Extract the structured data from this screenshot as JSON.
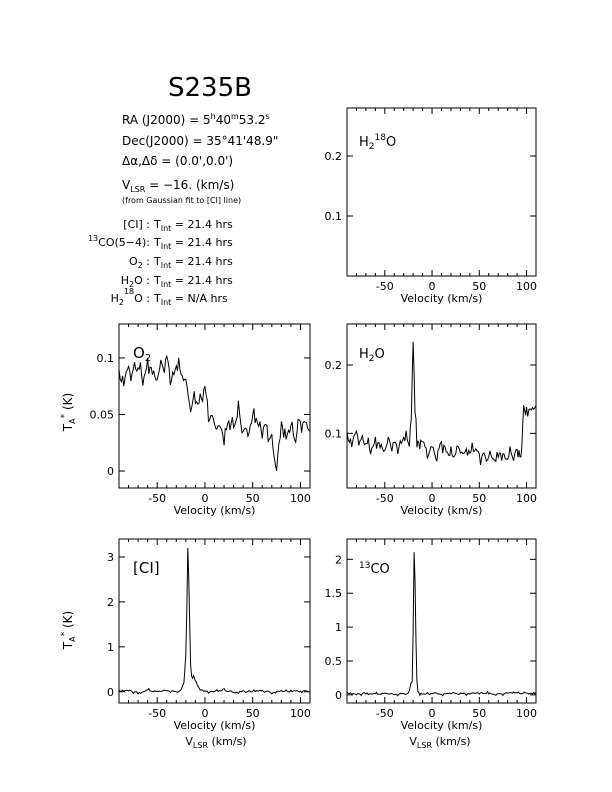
{
  "source": {
    "name": "S235B",
    "ra": "RA (J2000) = 5h40m53.2s",
    "dec": "Dec(J2000) = 35°41'48.9\"",
    "offset": "Δα,Δδ = (0.0',0.0')",
    "vlsr": "VLSR = −16. (km/s)",
    "vlsr_note": "(from Gaussian fit to [CI] line)",
    "integrations": [
      {
        "line": "[CI] :",
        "tint": "TInt = 21.4 hrs"
      },
      {
        "line": "13CO(5−4):",
        "tint": "TInt = 21.4 hrs"
      },
      {
        "line": "O2 :",
        "tint": "TInt = 21.4 hrs"
      },
      {
        "line": "H2O :",
        "tint": "TInt = 21.4 hrs"
      },
      {
        "line": "H2 18O :",
        "tint": "TInt = N/A hrs"
      }
    ]
  },
  "labels": {
    "velocity": "Velocity (km/s)",
    "vlsr_axis": "VLSR (km/s)",
    "ta": "TA* (K)"
  },
  "chart_data": [
    {
      "id": "h2o18",
      "type": "line",
      "species": "H2 18O",
      "xlim": [
        -90,
        110
      ],
      "ylim": [
        0,
        0.28
      ],
      "xticks": [
        -50,
        0,
        50,
        100
      ],
      "yticks": [
        0.1,
        0.2
      ],
      "ytick_labels": [
        "0.1",
        "0.2"
      ],
      "xlabel": "Velocity (km/s)",
      "ylabel": "",
      "series": []
    },
    {
      "id": "o2",
      "type": "line",
      "species": "O2",
      "xlim": [
        -90,
        110
      ],
      "ylim": [
        -0.015,
        0.13
      ],
      "xticks": [
        -50,
        0,
        50,
        100
      ],
      "yticks": [
        0,
        0.05,
        0.1
      ],
      "ytick_labels": [
        "0",
        "0.05",
        "0.1"
      ],
      "xlabel": "Velocity (km/s)",
      "ylabel": "TA* (K)",
      "series": [
        {
          "x": [
            -90,
            -85,
            -80,
            -75,
            -70,
            -65,
            -60,
            -55,
            -50,
            -45,
            -40,
            -35,
            -30,
            -25,
            -20,
            -15,
            -10,
            -5,
            0,
            5,
            10,
            15,
            20,
            25,
            30,
            35,
            40,
            45,
            50,
            55,
            60,
            65,
            70,
            75,
            80,
            85,
            90,
            95,
            100,
            105,
            110
          ],
          "y": [
            0.08,
            0.075,
            0.09,
            0.085,
            0.095,
            0.08,
            0.1,
            0.09,
            0.085,
            0.095,
            0.1,
            0.08,
            0.09,
            0.085,
            0.075,
            0.055,
            0.06,
            0.06,
            0.075,
            0.05,
            0.045,
            0.04,
            0.035,
            0.045,
            0.04,
            0.05,
            0.035,
            0.03,
            0.045,
            0.04,
            0.035,
            0.04,
            0.025,
            0.005,
            0.045,
            0.035,
            0.04,
            0.03,
            0.045,
            0.04,
            0.035
          ]
        }
      ]
    },
    {
      "id": "h2o",
      "type": "line",
      "species": "H2O",
      "xlim": [
        -90,
        110
      ],
      "ylim": [
        0.02,
        0.26
      ],
      "xticks": [
        -50,
        0,
        50,
        100
      ],
      "yticks": [
        0.1,
        0.2
      ],
      "ytick_labels": [
        "0.1",
        "0.2"
      ],
      "xlabel": "Velocity (km/s)",
      "ylabel": "",
      "series": [
        {
          "x": [
            -90,
            -85,
            -80,
            -75,
            -70,
            -65,
            -60,
            -55,
            -50,
            -45,
            -40,
            -35,
            -30,
            -25,
            -22,
            -20,
            -18,
            -16,
            -13,
            -10,
            -5,
            0,
            5,
            10,
            15,
            20,
            25,
            30,
            35,
            40,
            45,
            50,
            55,
            60,
            65,
            70,
            75,
            80,
            85,
            90,
            93,
            95,
            97,
            100,
            105,
            110
          ],
          "y": [
            0.09,
            0.08,
            0.1,
            0.085,
            0.09,
            0.075,
            0.095,
            0.085,
            0.08,
            0.09,
            0.085,
            0.08,
            0.09,
            0.085,
            0.12,
            0.25,
            0.13,
            0.09,
            0.085,
            0.09,
            0.075,
            0.08,
            0.07,
            0.09,
            0.075,
            0.065,
            0.07,
            0.075,
            0.065,
            0.07,
            0.075,
            0.07,
            0.065,
            0.07,
            0.065,
            0.075,
            0.07,
            0.065,
            0.07,
            0.07,
            0.06,
            0.08,
            0.13,
            0.14,
            0.13,
            0.14
          ]
        }
      ]
    },
    {
      "id": "ci",
      "type": "line",
      "species": "[CI]",
      "xlim": [
        -90,
        110
      ],
      "ylim": [
        -0.25,
        3.4
      ],
      "xticks": [
        -50,
        0,
        50,
        100
      ],
      "yticks": [
        0,
        1,
        2,
        3
      ],
      "ytick_labels": [
        "0",
        "1",
        "2",
        "3"
      ],
      "xlabel": "Velocity (km/s)",
      "ylabel": "TA* (K)",
      "series": [
        {
          "x": [
            -90,
            -80,
            -70,
            -60,
            -50,
            -40,
            -30,
            -25,
            -22,
            -20,
            -19,
            -18,
            -17,
            -16,
            -15,
            -14,
            -13,
            -12,
            -11,
            -10,
            -8,
            -6,
            -4,
            0,
            10,
            20,
            30,
            40,
            50,
            60,
            70,
            80,
            90,
            100,
            110
          ],
          "y": [
            0.0,
            0.02,
            -0.02,
            0.03,
            0.0,
            0.02,
            0.0,
            0.05,
            0.2,
            0.8,
            1.8,
            3.2,
            2.6,
            1.5,
            0.6,
            0.35,
            0.3,
            0.35,
            0.3,
            0.25,
            0.15,
            0.08,
            0.05,
            0.02,
            0.0,
            0.03,
            -0.02,
            0.02,
            0.0,
            0.02,
            -0.02,
            0.03,
            0.0,
            0.02,
            0.0
          ]
        }
      ]
    },
    {
      "id": "co13",
      "type": "line",
      "species": "13CO",
      "xlim": [
        -90,
        110
      ],
      "ylim": [
        -0.12,
        2.3
      ],
      "xticks": [
        -50,
        0,
        50,
        100
      ],
      "yticks": [
        0,
        0.5,
        1,
        1.5,
        2
      ],
      "ytick_labels": [
        "0",
        "0.5",
        "1",
        "1.5",
        "2"
      ],
      "xlabel": "Velocity (km/s)",
      "ylabel": "",
      "series": [
        {
          "x": [
            -90,
            -80,
            -70,
            -60,
            -50,
            -40,
            -30,
            -25,
            -21,
            -20,
            -19,
            -18,
            -17,
            -16,
            -15,
            -13,
            -10,
            0,
            10,
            20,
            30,
            40,
            50,
            60,
            70,
            80,
            90,
            100,
            110
          ],
          "y": [
            0.02,
            0.0,
            0.03,
            0.01,
            0.02,
            0.0,
            0.02,
            0.03,
            0.2,
            0.9,
            2.1,
            1.7,
            0.8,
            0.2,
            0.05,
            0.02,
            0.01,
            0.02,
            0.01,
            0.03,
            0.02,
            0.01,
            0.03,
            0.02,
            0.01,
            0.02,
            0.03,
            0.02,
            0.04
          ]
        }
      ]
    }
  ]
}
